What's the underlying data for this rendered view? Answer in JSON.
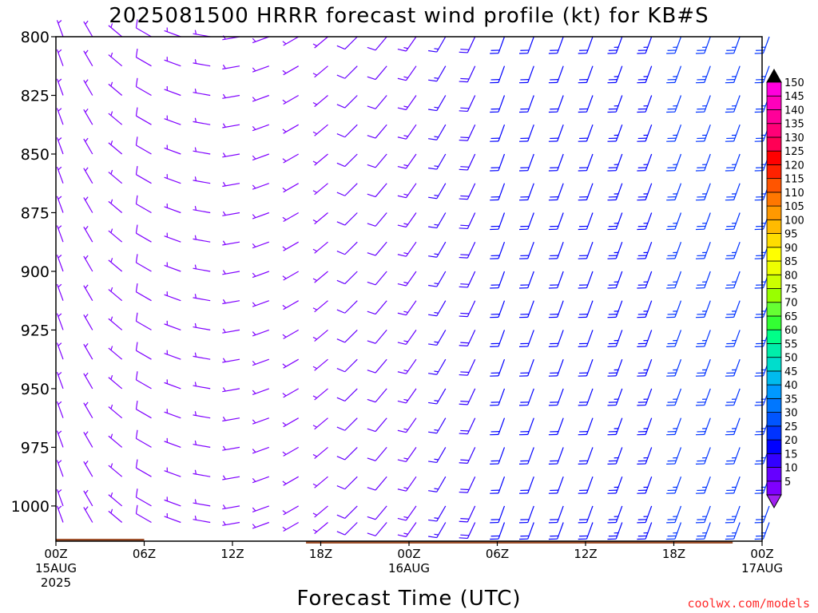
{
  "chart_data": {
    "type": "wind_barb_time_height",
    "title": "2025081500 HRRR forecast wind profile (kt) for KB#S",
    "xlabel": "Forecast Time (UTC)",
    "ylabel": "",
    "credit": "coolwx.com/models",
    "x_ticks": [
      {
        "hour": 0,
        "label": "00Z",
        "date": "15AUG",
        "year": "2025"
      },
      {
        "hour": 6,
        "label": "06Z"
      },
      {
        "hour": 12,
        "label": "12Z"
      },
      {
        "hour": 18,
        "label": "18Z"
      },
      {
        "hour": 24,
        "label": "00Z",
        "date": "16AUG"
      },
      {
        "hour": 30,
        "label": "06Z"
      },
      {
        "hour": 36,
        "label": "12Z"
      },
      {
        "hour": 42,
        "label": "18Z"
      },
      {
        "hour": 48,
        "label": "00Z",
        "date": "17AUG"
      }
    ],
    "xlim": [
      0,
      48
    ],
    "ylim": [
      800,
      1015
    ],
    "y_ticks": [
      800,
      825,
      850,
      875,
      900,
      925,
      950,
      975,
      1000
    ],
    "y_axis_reversed": true,
    "colorbar": {
      "levels": [
        5,
        10,
        15,
        20,
        25,
        30,
        35,
        40,
        45,
        50,
        55,
        60,
        65,
        70,
        75,
        80,
        85,
        90,
        95,
        100,
        105,
        110,
        115,
        120,
        125,
        130,
        135,
        140,
        145,
        150
      ],
      "colors": [
        "#7f00ff",
        "#6600ff",
        "#3300ff",
        "#0000ff",
        "#0033ff",
        "#0055ff",
        "#0077ff",
        "#0099ff",
        "#00bbee",
        "#00ddcc",
        "#00eeaa",
        "#00ff88",
        "#33ff33",
        "#66ff33",
        "#99ff00",
        "#ccff00",
        "#eeff00",
        "#ffff00",
        "#ffdd00",
        "#ffbb00",
        "#ff9900",
        "#ff7700",
        "#ff5500",
        "#ff2200",
        "#ff0000",
        "#ff0055",
        "#ff0077",
        "#ff0099",
        "#ff00bb",
        "#ff00dd"
      ],
      "extend_low_color": "#a020f0",
      "extend_high_color": "#000000"
    },
    "terrain": {
      "color": "#a0522d",
      "surface_pressure_hpa": [
        1014,
        1014,
        1014,
        1014,
        1014,
        1014,
        1015,
        1015,
        1015,
        1015,
        1015,
        1015,
        1015,
        1015,
        1015,
        1015,
        1015,
        1016,
        1016,
        1016,
        1016,
        1016,
        1016,
        1016,
        1016,
        1016,
        1016,
        1016,
        1016,
        1016,
        1016,
        1016,
        1016,
        1016,
        1016,
        1016,
        1016,
        1016,
        1016,
        1016,
        1016,
        1016,
        1016,
        1016,
        1016,
        1016,
        1015,
        1015,
        1015
      ]
    },
    "barb_pressure_levels": [
      800,
      812.5,
      825,
      837.5,
      850,
      862.5,
      875,
      887.5,
      900,
      912.5,
      925,
      937.5,
      950,
      962.5,
      975,
      987.5,
      1000,
      1007
    ],
    "barb_hours": [
      0,
      2,
      4,
      6,
      8,
      10,
      12,
      14,
      16,
      18,
      20,
      22,
      24,
      26,
      28,
      30,
      32,
      34,
      36,
      38,
      40,
      42,
      44,
      46,
      48
    ],
    "barb_speed_kt_by_hour": [
      5,
      6,
      7,
      8,
      7,
      6,
      5,
      5,
      6,
      7,
      10,
      12,
      14,
      16,
      18,
      20,
      20,
      20,
      22,
      24,
      24,
      25,
      26,
      26,
      25
    ],
    "barb_direction_deg_by_hour": [
      340,
      330,
      310,
      300,
      290,
      280,
      260,
      250,
      240,
      230,
      225,
      220,
      215,
      210,
      205,
      200,
      200,
      200,
      200,
      200,
      200,
      200,
      200,
      200,
      200
    ]
  }
}
